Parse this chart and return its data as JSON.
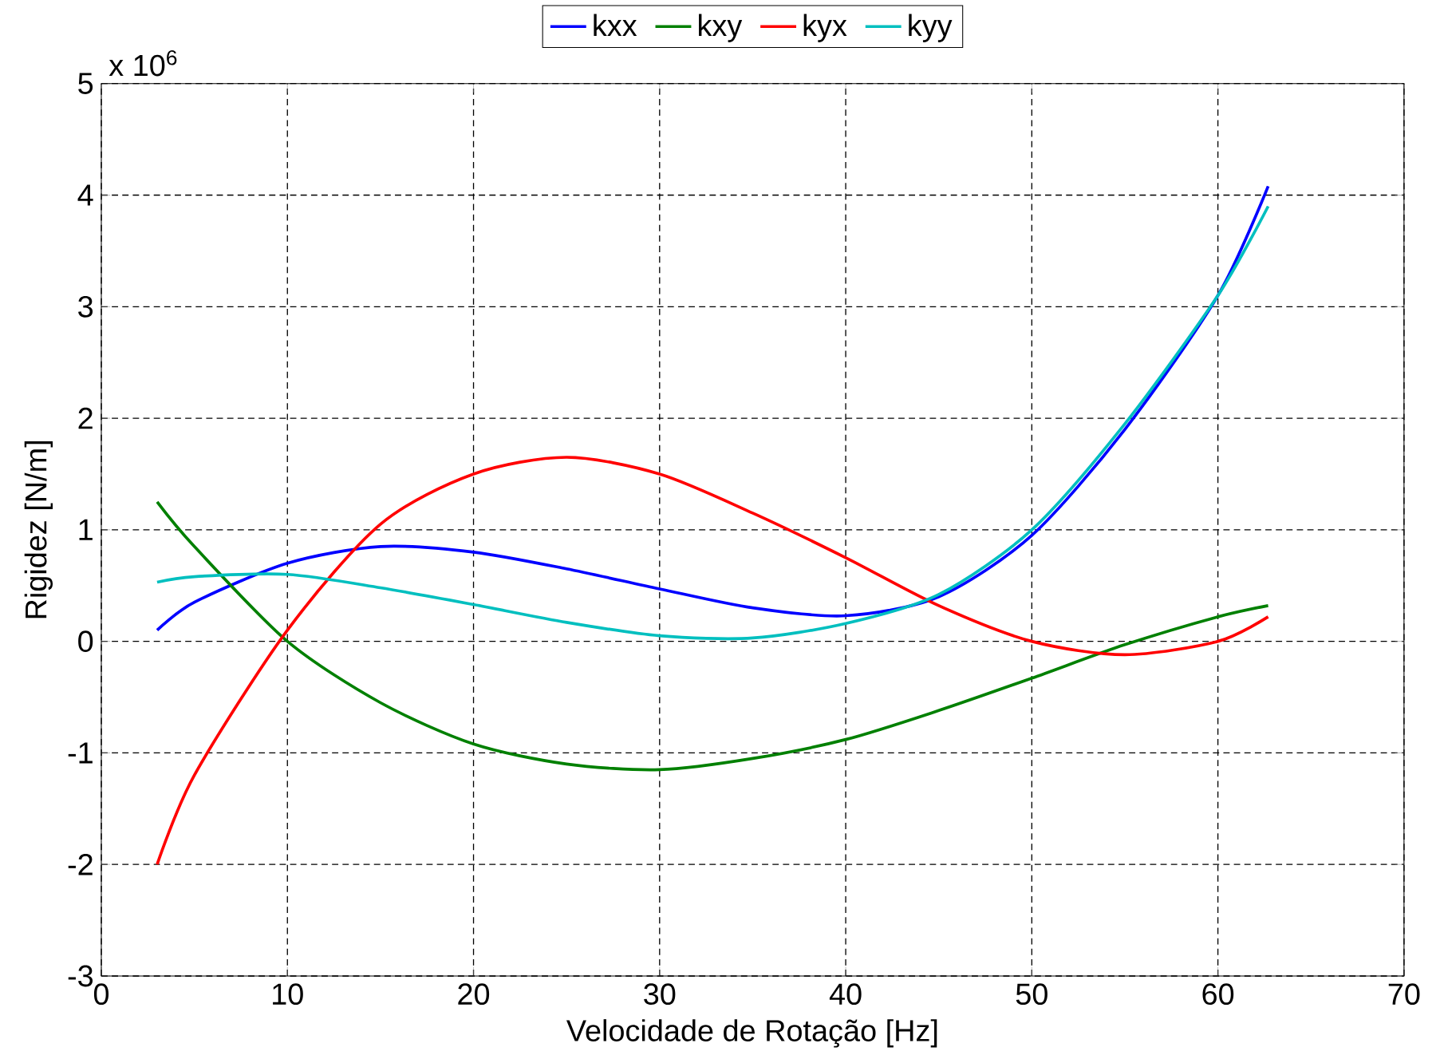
{
  "chart_data": {
    "type": "line",
    "xlabel": "Velocidade de Rotação [Hz]",
    "ylabel": "Rigidez [N/m]",
    "annotations": [
      "x 10$^{6}$"
    ],
    "x": [
      3,
      5,
      10,
      15,
      20,
      25,
      30,
      35,
      40,
      45,
      50,
      55,
      60,
      62.7
    ],
    "series": [
      {
        "name": "kxx",
        "color": "#0000ff",
        "values": [
          0.1,
          0.35,
          0.7,
          0.85,
          0.8,
          0.65,
          0.47,
          0.3,
          0.23,
          0.4,
          0.95,
          1.9,
          3.1,
          4.08
        ]
      },
      {
        "name": "kxy",
        "color": "#008000",
        "values": [
          1.25,
          0.85,
          0.0,
          -0.55,
          -0.92,
          -1.1,
          -1.15,
          -1.05,
          -0.88,
          -0.62,
          -0.33,
          -0.03,
          0.22,
          0.32
        ]
      },
      {
        "name": "kyx",
        "color": "#ff0000",
        "values": [
          -2.0,
          -1.2,
          0.1,
          1.05,
          1.5,
          1.65,
          1.5,
          1.15,
          0.75,
          0.32,
          0.0,
          -0.12,
          0.0,
          0.22
        ]
      },
      {
        "name": "kyy",
        "color": "#00bfbf",
        "values": [
          0.53,
          0.58,
          0.6,
          0.48,
          0.33,
          0.17,
          0.05,
          0.03,
          0.16,
          0.42,
          1.0,
          1.95,
          3.1,
          3.9
        ]
      }
    ],
    "xlim": [
      0,
      70
    ],
    "ylim": [
      -3,
      5
    ],
    "xticks": [
      0,
      10,
      20,
      30,
      40,
      50,
      60,
      70
    ],
    "yticks": [
      -3,
      -2,
      -1,
      0,
      1,
      2,
      3,
      4,
      5
    ],
    "grid": true,
    "legend": "top",
    "marker": "none",
    "line_style": "solid"
  }
}
